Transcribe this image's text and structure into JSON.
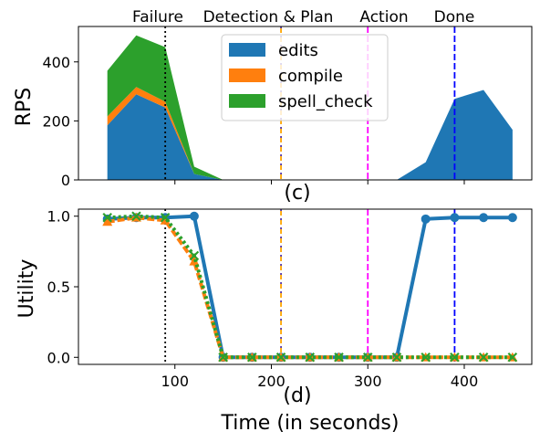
{
  "chart_data": [
    {
      "type": "area",
      "stacked": true,
      "panel_label": "(c)",
      "ylabel": "RPS",
      "xlim": [
        0,
        470
      ],
      "ylim": [
        0,
        520
      ],
      "yticks": [
        0,
        200,
        400
      ],
      "xticks": [
        100,
        200,
        300,
        400
      ],
      "show_xtick_labels": false,
      "grid": false,
      "x": [
        30,
        60,
        90,
        120,
        150,
        180,
        210,
        240,
        270,
        300,
        330,
        360,
        390,
        420,
        450
      ],
      "series": [
        {
          "name": "edits",
          "color": "#1f77b4",
          "values": [
            185,
            290,
            245,
            20,
            0,
            0,
            0,
            0,
            0,
            0,
            0,
            60,
            275,
            305,
            170
          ]
        },
        {
          "name": "compile",
          "color": "#ff7f0e",
          "values": [
            30,
            25,
            20,
            0,
            0,
            0,
            0,
            0,
            0,
            0,
            0,
            0,
            0,
            0,
            0
          ]
        },
        {
          "name": "spell_check",
          "color": "#2ca02c",
          "values": [
            155,
            175,
            185,
            25,
            0,
            0,
            0,
            0,
            0,
            0,
            0,
            0,
            0,
            0,
            0
          ]
        }
      ],
      "legend": {
        "placement": "upper-center"
      },
      "events": [
        {
          "label": "Failure",
          "x": 90,
          "color": "#000000",
          "style": "dotted"
        },
        {
          "label": "Detection & Plan",
          "x": 210,
          "color": "#ffa500",
          "style": "dashed"
        },
        {
          "label": "Action",
          "x": 300,
          "color": "#ff00ff",
          "style": "dashed"
        },
        {
          "label": "Done",
          "x": 390,
          "color": "#0000ff",
          "style": "dashed"
        }
      ]
    },
    {
      "type": "line",
      "panel_label": "(d)",
      "ylabel": "Utility",
      "xlabel": "Time (in seconds)",
      "xlim": [
        0,
        470
      ],
      "ylim": [
        -0.05,
        1.05
      ],
      "yticks": [
        0.0,
        0.5,
        1.0
      ],
      "ytick_labels": [
        "0.0",
        "0.5",
        "1.0"
      ],
      "xticks": [
        100,
        200,
        300,
        400
      ],
      "xtick_labels": [
        "100",
        "200",
        "300",
        "400"
      ],
      "grid": false,
      "x": [
        30,
        60,
        90,
        120,
        150,
        180,
        210,
        240,
        270,
        300,
        330,
        360,
        390,
        420,
        450
      ],
      "series": [
        {
          "color": "#1f77b4",
          "marker": "circle",
          "style": "solid",
          "values": [
            0.98,
            0.99,
            0.99,
            1.0,
            0.0,
            0.0,
            0.0,
            0.0,
            0.0,
            0.0,
            0.0,
            0.98,
            0.99,
            0.99,
            0.99
          ]
        },
        {
          "color": "#ff7f0e",
          "marker": "triangle",
          "style": "dashed",
          "values": [
            0.96,
            0.99,
            0.97,
            0.68,
            0.0,
            0.0,
            0.0,
            0.0,
            0.0,
            0.0,
            0.0,
            0.0,
            0.0,
            0.0,
            0.0
          ]
        },
        {
          "color": "#2ca02c",
          "marker": "x",
          "style": "dotted",
          "values": [
            0.99,
            1.0,
            0.99,
            0.72,
            0.0,
            0.0,
            0.0,
            0.0,
            0.0,
            0.0,
            0.0,
            0.0,
            0.0,
            0.0,
            0.0
          ]
        }
      ],
      "events": [
        {
          "x": 90,
          "color": "#000000",
          "style": "dotted"
        },
        {
          "x": 210,
          "color": "#ffa500",
          "style": "dashed"
        },
        {
          "x": 300,
          "color": "#ff00ff",
          "style": "dashed"
        },
        {
          "x": 390,
          "color": "#0000ff",
          "style": "dashed"
        }
      ]
    }
  ]
}
